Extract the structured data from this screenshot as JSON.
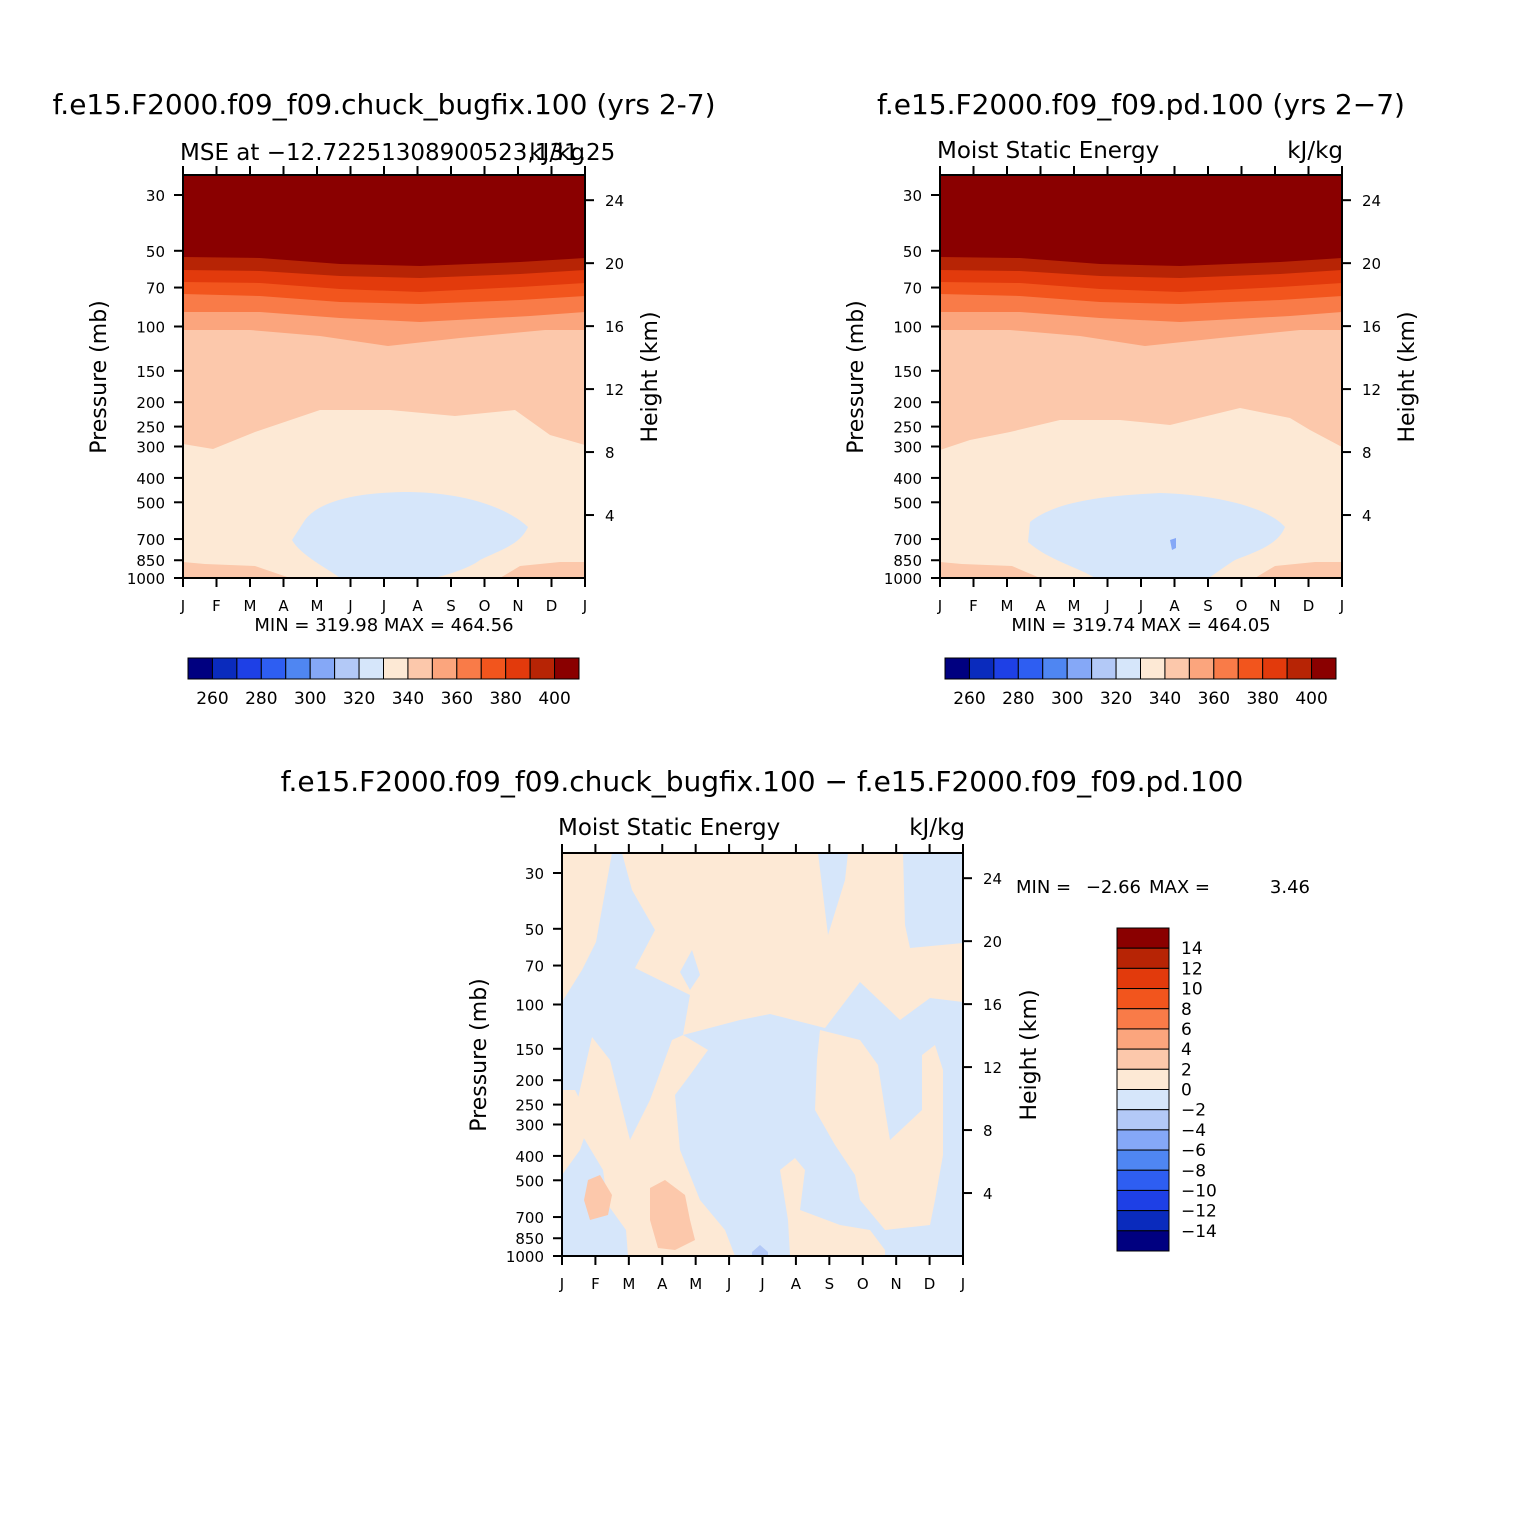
{
  "chart_data": [
    {
      "type": "heatmap",
      "title": "f.e15.F2000.f09_f09.chuck_bugfix.100 (yrs 2-7)",
      "subtitle_left": "MSE at −12.72251308900523,131.25",
      "subtitle_right": "kJ/kg",
      "ylabel": "Pressure (mb)",
      "ylabel_right": "Height (km)",
      "x_ticks": [
        "J",
        "F",
        "M",
        "A",
        "M",
        "J",
        "J",
        "A",
        "S",
        "O",
        "N",
        "D",
        "J"
      ],
      "y_ticks": [
        "30",
        "50",
        "70",
        "100",
        "150",
        "200",
        "250",
        "300",
        "400",
        "500",
        "700",
        "850",
        "1000"
      ],
      "y_right_ticks": [
        "24",
        "20",
        "16",
        "12",
        "8",
        "4"
      ],
      "y_scale": "log",
      "stats_text": "MIN = 319.98 MAX = 464.56",
      "min": 319.98,
      "max": 464.56,
      "colorbar_labels": [
        "260",
        "280",
        "300",
        "320",
        "340",
        "360",
        "380",
        "400"
      ]
    },
    {
      "type": "heatmap",
      "title": "f.e15.F2000.f09_f09.pd.100 (yrs 2−7)",
      "subtitle_left": "Moist Static Energy",
      "subtitle_right": "kJ/kg",
      "ylabel": "Pressure (mb)",
      "ylabel_right": "Height (km)",
      "x_ticks": [
        "J",
        "F",
        "M",
        "A",
        "M",
        "J",
        "J",
        "A",
        "S",
        "O",
        "N",
        "D",
        "J"
      ],
      "y_ticks": [
        "30",
        "50",
        "70",
        "100",
        "150",
        "200",
        "250",
        "300",
        "400",
        "500",
        "700",
        "850",
        "1000"
      ],
      "y_right_ticks": [
        "24",
        "20",
        "16",
        "12",
        "8",
        "4"
      ],
      "y_scale": "log",
      "stats_text": "MIN = 319.74 MAX = 464.05",
      "min": 319.74,
      "max": 464.05,
      "colorbar_labels": [
        "260",
        "280",
        "300",
        "320",
        "340",
        "360",
        "380",
        "400"
      ]
    },
    {
      "type": "heatmap",
      "title": "f.e15.F2000.f09_f09.chuck_bugfix.100 − f.e15.F2000.f09_f09.pd.100",
      "subtitle_left": "Moist Static Energy",
      "subtitle_right": "kJ/kg",
      "ylabel": "Pressure (mb)",
      "ylabel_right": "Height (km)",
      "x_ticks": [
        "J",
        "F",
        "M",
        "A",
        "M",
        "J",
        "J",
        "A",
        "S",
        "O",
        "N",
        "D",
        "J"
      ],
      "y_ticks": [
        "30",
        "50",
        "70",
        "100",
        "150",
        "200",
        "250",
        "300",
        "400",
        "500",
        "700",
        "850",
        "1000"
      ],
      "y_right_ticks": [
        "24",
        "20",
        "16",
        "12",
        "8",
        "4"
      ],
      "y_scale": "log",
      "stats_min_label": "MIN =",
      "stats_min_value": "−2.66",
      "stats_max_label": "MAX =",
      "stats_max_value": "3.46",
      "min": -2.66,
      "max": 3.46,
      "colorbar_labels": [
        "14",
        "12",
        "10",
        "8",
        "6",
        "4",
        "2",
        "0",
        "−2",
        "−4",
        "−6",
        "−8",
        "−10",
        "−12",
        "−14"
      ]
    }
  ],
  "colors": {
    "abs_palette": [
      "#000080",
      "#0a2bbd",
      "#1e40e6",
      "#2e5ef2",
      "#4f86f2",
      "#85a8f7",
      "#b3c9f7",
      "#d6e6fa",
      "#fde9d5",
      "#fcc8ab",
      "#fba57d",
      "#f97b48",
      "#f2551d",
      "#e23a0c",
      "#b72405",
      "#8a0000"
    ],
    "diff_palette": [
      "#8a0000",
      "#b72405",
      "#e23a0c",
      "#f2551d",
      "#f97b48",
      "#fba57d",
      "#fcc8ab",
      "#fde9d5",
      "#d6e6fa",
      "#b3c9f7",
      "#85a8f7",
      "#4f86f2",
      "#2e5ef2",
      "#1e40e6",
      "#0a2bbd",
      "#000080"
    ]
  }
}
